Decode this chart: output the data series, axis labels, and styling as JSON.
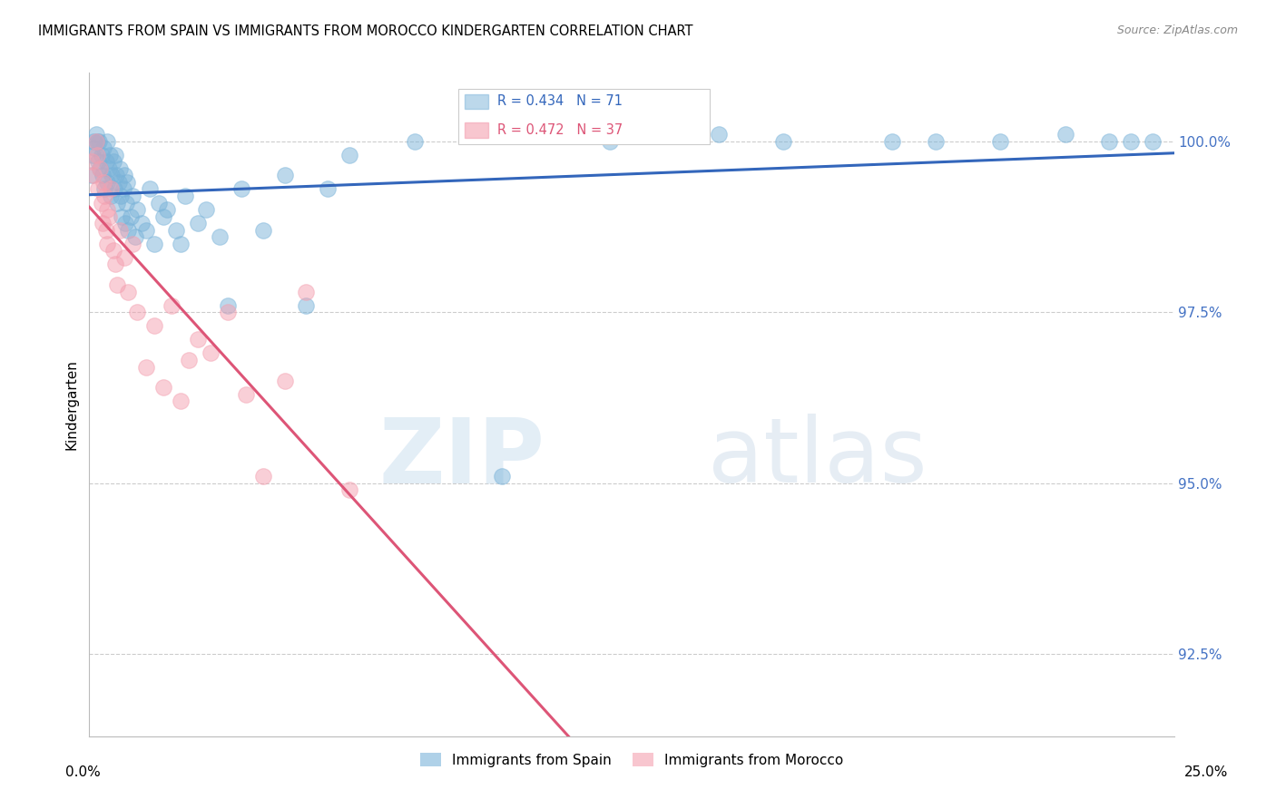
{
  "title": "IMMIGRANTS FROM SPAIN VS IMMIGRANTS FROM MOROCCO KINDERGARTEN CORRELATION CHART",
  "source": "Source: ZipAtlas.com",
  "ylabel": "Kindergarten",
  "y_ticks": [
    92.5,
    95.0,
    97.5,
    100.0
  ],
  "y_tick_labels": [
    "92.5%",
    "95.0%",
    "97.5%",
    "100.0%"
  ],
  "x_min": 0.0,
  "x_max": 25.0,
  "y_min": 91.3,
  "y_max": 101.0,
  "spain_color": "#7ab3d9",
  "morocco_color": "#f4a0b0",
  "spain_line_color": "#3366bb",
  "morocco_line_color": "#dd5577",
  "spain_R": 0.434,
  "spain_N": 71,
  "morocco_R": 0.472,
  "morocco_N": 37,
  "watermark_zip": "ZIP",
  "watermark_atlas": "atlas",
  "legend_label_spain": "Immigrants from Spain",
  "legend_label_morocco": "Immigrants from Morocco",
  "spain_x": [
    0.05,
    0.08,
    0.1,
    0.12,
    0.15,
    0.18,
    0.2,
    0.22,
    0.25,
    0.28,
    0.3,
    0.32,
    0.35,
    0.38,
    0.4,
    0.42,
    0.45,
    0.48,
    0.5,
    0.52,
    0.55,
    0.58,
    0.6,
    0.62,
    0.65,
    0.68,
    0.7,
    0.72,
    0.75,
    0.78,
    0.8,
    0.82,
    0.85,
    0.88,
    0.9,
    0.95,
    1.0,
    1.05,
    1.1,
    1.2,
    1.3,
    1.4,
    1.5,
    1.6,
    1.7,
    1.8,
    2.0,
    2.1,
    2.2,
    2.5,
    2.7,
    3.0,
    3.2,
    3.5,
    4.0,
    4.5,
    5.0,
    5.5,
    6.0,
    7.5,
    9.5,
    12.0,
    14.5,
    16.0,
    18.5,
    19.5,
    21.0,
    22.5,
    23.5,
    24.0,
    24.5
  ],
  "spain_y": [
    99.5,
    99.8,
    100.0,
    99.9,
    100.1,
    100.0,
    99.7,
    100.0,
    99.6,
    99.8,
    99.5,
    99.9,
    99.3,
    99.7,
    99.4,
    100.0,
    99.6,
    99.8,
    99.2,
    99.5,
    99.7,
    99.3,
    99.8,
    99.5,
    99.1,
    99.4,
    99.6,
    99.2,
    98.9,
    99.3,
    99.5,
    98.8,
    99.1,
    99.4,
    98.7,
    98.9,
    99.2,
    98.6,
    99.0,
    98.8,
    98.7,
    99.3,
    98.5,
    99.1,
    98.9,
    99.0,
    98.7,
    98.5,
    99.2,
    98.8,
    99.0,
    98.6,
    97.6,
    99.3,
    98.7,
    99.5,
    97.6,
    99.3,
    99.8,
    100.0,
    95.1,
    100.0,
    100.1,
    100.0,
    100.0,
    100.0,
    100.0,
    100.1,
    100.0,
    100.0,
    100.0
  ],
  "morocco_x": [
    0.05,
    0.1,
    0.15,
    0.18,
    0.2,
    0.25,
    0.28,
    0.3,
    0.32,
    0.35,
    0.38,
    0.4,
    0.42,
    0.45,
    0.5,
    0.55,
    0.6,
    0.65,
    0.7,
    0.8,
    0.9,
    1.0,
    1.1,
    1.3,
    1.5,
    1.7,
    1.9,
    2.1,
    2.3,
    2.5,
    2.8,
    3.2,
    3.6,
    4.0,
    4.5,
    5.0,
    6.0
  ],
  "morocco_y": [
    99.7,
    99.5,
    100.0,
    99.8,
    99.3,
    99.6,
    99.1,
    98.8,
    99.4,
    99.2,
    98.7,
    99.0,
    98.5,
    98.9,
    99.3,
    98.4,
    98.2,
    97.9,
    98.7,
    98.3,
    97.8,
    98.5,
    97.5,
    96.7,
    97.3,
    96.4,
    97.6,
    96.2,
    96.8,
    97.1,
    96.9,
    97.5,
    96.3,
    95.1,
    96.5,
    97.8,
    94.9
  ]
}
